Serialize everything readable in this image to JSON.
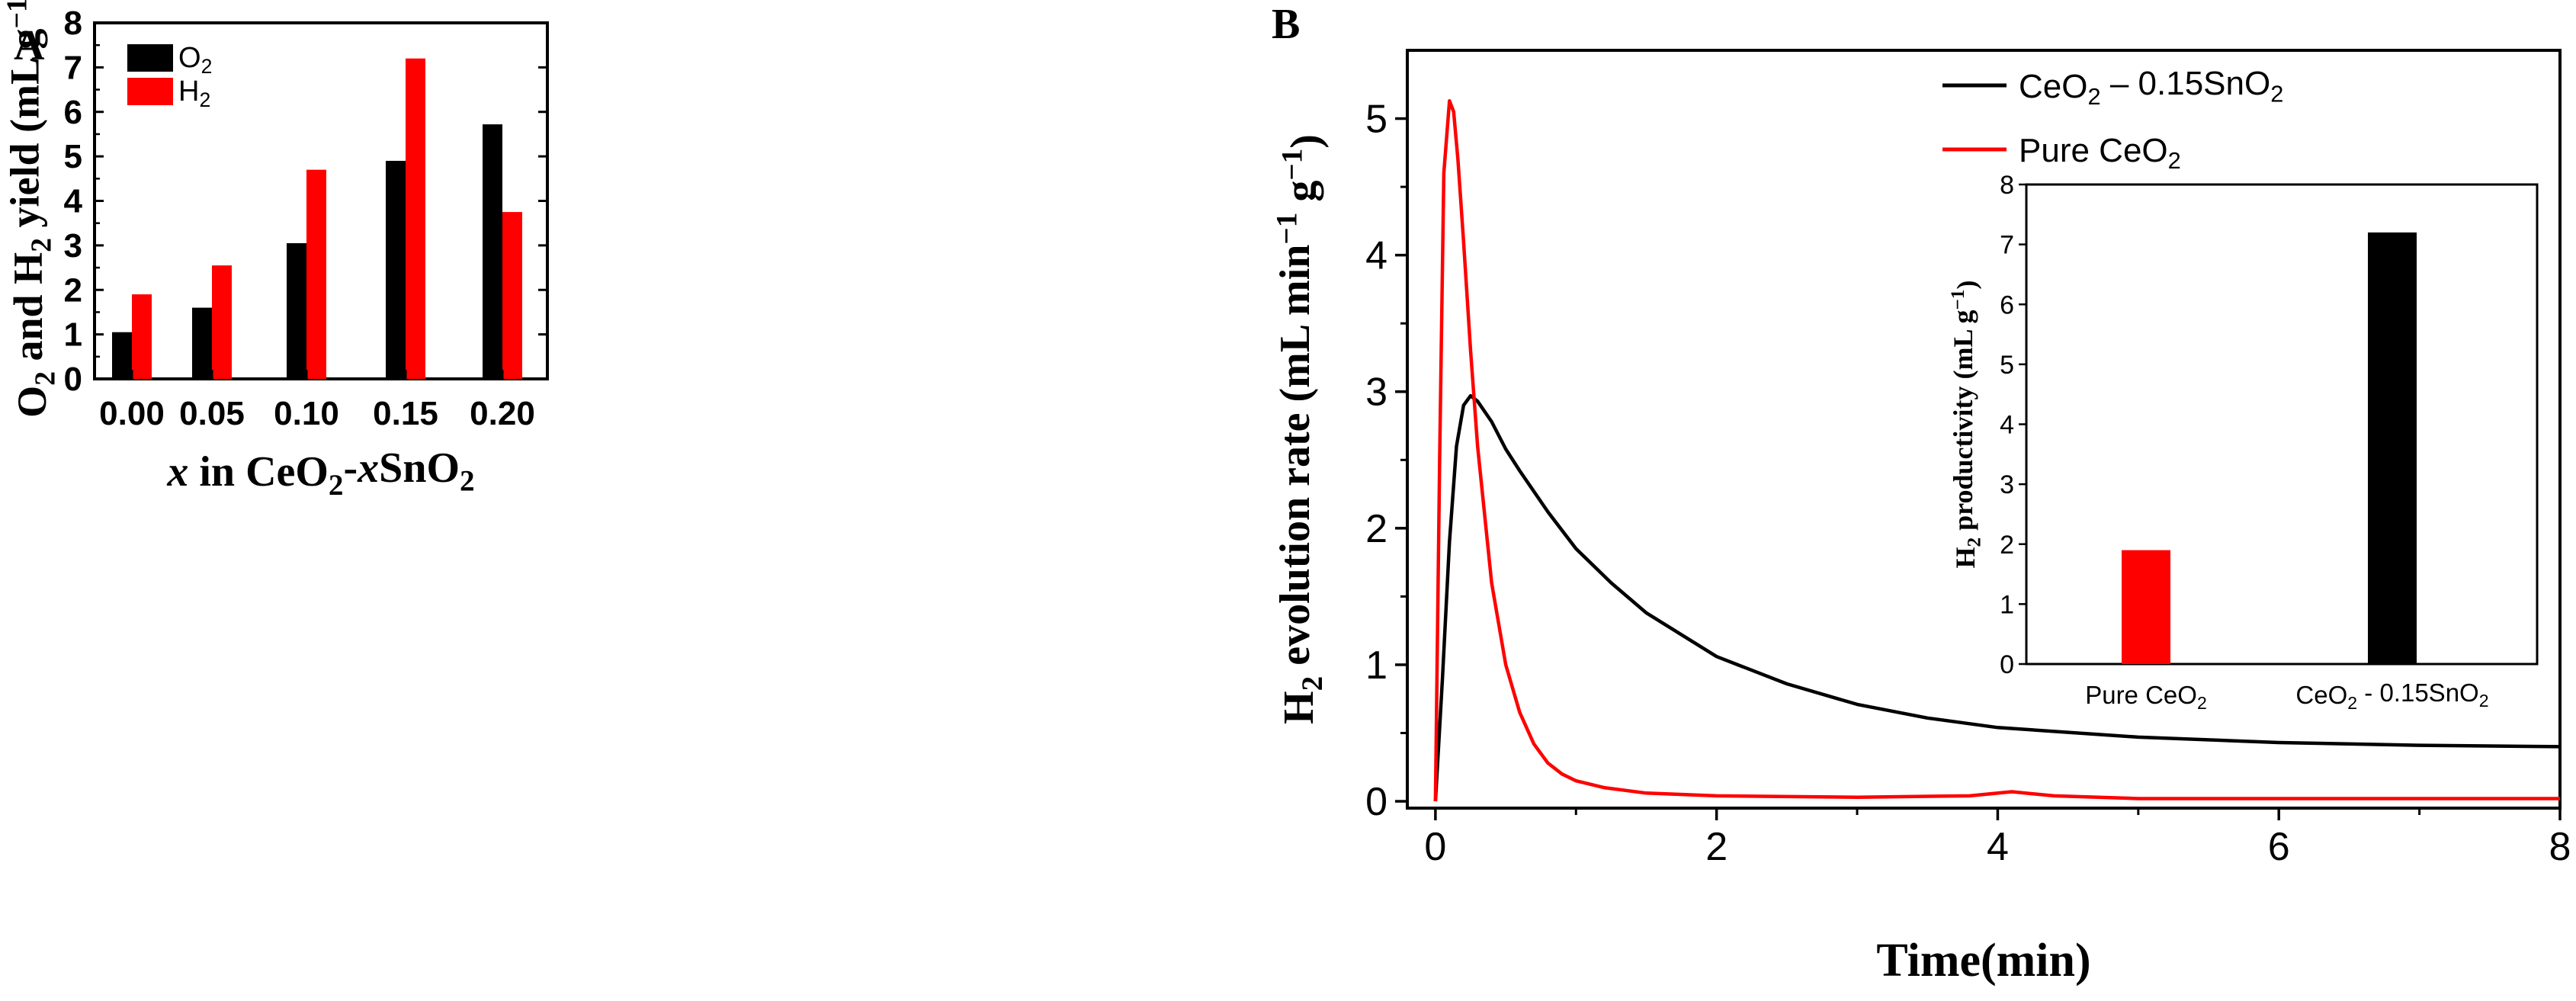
{
  "colors": {
    "o2": "#000000",
    "h2": "#ff0000",
    "axis": "#000000"
  },
  "chart_data": [
    {
      "panel": "A",
      "type": "bar",
      "xlabel": "x in CeO2-xSnO2",
      "xlabel_parts": [
        "x",
        " in CeO",
        "2",
        "-",
        "x",
        "SnO",
        "2"
      ],
      "ylabel": "O2 and H2 yield (mL g−1)",
      "ylabel_parts": [
        "O",
        "2",
        " and H",
        "2",
        " yield (mL g",
        "−1",
        ")"
      ],
      "ylim": [
        0,
        8
      ],
      "yticks": [
        "0",
        "1",
        "2",
        "3",
        "4",
        "5",
        "6",
        "7",
        "8"
      ],
      "categories": [
        "0.00",
        "0.05",
        "0.10",
        "0.15",
        "0.20"
      ],
      "series": [
        {
          "name": "O2",
          "name_parts": [
            "O",
            "2"
          ],
          "color": "#000000",
          "values": [
            1.05,
            1.6,
            3.05,
            4.9,
            5.72
          ]
        },
        {
          "name": "H2",
          "name_parts": [
            "H",
            "2"
          ],
          "color": "#ff0000",
          "values": [
            1.9,
            2.55,
            4.7,
            7.2,
            3.75
          ]
        }
      ],
      "legend": "top-left"
    },
    {
      "panel": "B",
      "type": "line",
      "xlabel": "Time(min)",
      "ylabel": "H2 evolution rate (mL min−1 g−1)",
      "ylabel_parts": [
        "H",
        "2",
        " evolution rate (mL min",
        "−1",
        " g",
        "−1",
        ")"
      ],
      "xlim": [
        -0.2,
        8
      ],
      "ylim": [
        -0.05,
        5.5
      ],
      "xticks": [
        "0",
        "2",
        "4",
        "6",
        "8"
      ],
      "yticks": [
        "0",
        "1",
        "2",
        "3",
        "4",
        "5"
      ],
      "series": [
        {
          "name": "CeO2 – 0.15SnO2",
          "name_parts": [
            "CeO",
            "2",
            " – 0.15SnO",
            "2"
          ],
          "color": "#000000",
          "x": [
            0,
            0.05,
            0.1,
            0.15,
            0.2,
            0.25,
            0.3,
            0.4,
            0.5,
            0.6,
            0.8,
            1.0,
            1.25,
            1.5,
            2.0,
            2.5,
            3.0,
            3.5,
            4.0,
            5.0,
            6.0,
            7.0,
            8.0
          ],
          "y": [
            0,
            0.9,
            1.9,
            2.6,
            2.9,
            2.97,
            2.93,
            2.78,
            2.58,
            2.42,
            2.12,
            1.85,
            1.6,
            1.38,
            1.06,
            0.86,
            0.71,
            0.61,
            0.54,
            0.47,
            0.43,
            0.41,
            0.4
          ]
        },
        {
          "name": "Pure CeO2",
          "name_parts": [
            "Pure CeO",
            "2"
          ],
          "color": "#ff0000",
          "x": [
            0,
            0.03,
            0.06,
            0.1,
            0.13,
            0.16,
            0.2,
            0.25,
            0.3,
            0.4,
            0.5,
            0.6,
            0.7,
            0.8,
            0.9,
            1.0,
            1.2,
            1.5,
            2.0,
            3.0,
            3.8,
            4.1,
            4.4,
            5.0,
            6.0,
            8.0
          ],
          "y": [
            0,
            2.5,
            4.6,
            5.13,
            5.05,
            4.7,
            4.1,
            3.3,
            2.6,
            1.6,
            1.0,
            0.65,
            0.42,
            0.28,
            0.2,
            0.15,
            0.1,
            0.06,
            0.04,
            0.03,
            0.04,
            0.07,
            0.04,
            0.02,
            0.02,
            0.02
          ]
        }
      ],
      "legend": "top-right",
      "inset": {
        "type": "bar",
        "ylabel": "H2 productivity (mL g−1)",
        "ylabel_parts": [
          "H",
          "2",
          " productivity (mL g",
          "−1",
          ")"
        ],
        "ylim": [
          0,
          8
        ],
        "yticks": [
          "0",
          "1",
          "2",
          "3",
          "4",
          "5",
          "6",
          "7",
          "8"
        ],
        "categories": [
          "Pure CeO2",
          "CeO2 - 0.15SnO2"
        ],
        "category_parts": [
          [
            "Pure CeO",
            "2"
          ],
          [
            "CeO",
            "2",
            " - 0.15SnO",
            "2"
          ]
        ],
        "values": [
          1.9,
          7.2
        ],
        "colors": [
          "#ff0000",
          "#000000"
        ]
      }
    }
  ]
}
